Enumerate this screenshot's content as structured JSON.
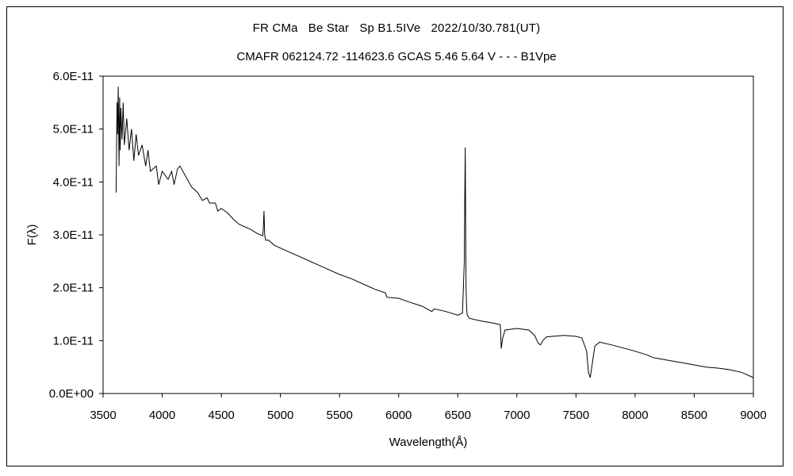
{
  "chart_data": {
    "type": "line",
    "title": "FR CMa   Be Star   Sp B1.5IVe   2022/10/30.781(UT)",
    "subtitle": "CMAFR 062124.72 -114623.6 GCAS 5.46 5.64 V - - - B1Vpe",
    "xlabel": "Wavelength(Å)",
    "ylabel": "F(λ)",
    "xlim": [
      3500,
      9000
    ],
    "ylim": [
      0,
      6e-11
    ],
    "x_ticks": [
      "3500",
      "4000",
      "4500",
      "5000",
      "5500",
      "6000",
      "6500",
      "7000",
      "7500",
      "8000",
      "8500",
      "9000"
    ],
    "y_ticks": [
      "0.0E+00",
      "1.0E-11",
      "2.0E-11",
      "3.0E-11",
      "4.0E-11",
      "5.0E-11",
      "6.0E-11"
    ],
    "grid": false,
    "legend": "none",
    "series": [
      {
        "x": [
          3610,
          3618,
          3622,
          3628,
          3635,
          3640,
          3645,
          3650,
          3660,
          3670,
          3680,
          3700,
          3720,
          3740,
          3760,
          3780,
          3800,
          3830,
          3860,
          3880,
          3900,
          3950,
          3970,
          4000,
          4050,
          4080,
          4100,
          4130,
          4150,
          4200,
          4250,
          4300,
          4340,
          4380,
          4400,
          4450,
          4470,
          4500,
          4550,
          4600,
          4650,
          4700,
          4750,
          4800,
          4850,
          4855,
          4861,
          4867,
          4875,
          4900,
          4950,
          5000,
          5100,
          5200,
          5300,
          5400,
          5500,
          5600,
          5700,
          5800,
          5890,
          5900,
          6000,
          6100,
          6200,
          6280,
          6300,
          6400,
          6500,
          6540,
          6555,
          6560,
          6563,
          6566,
          6570,
          6575,
          6580,
          6600,
          6700,
          6800,
          6860,
          6868,
          6880,
          6900,
          7000,
          7100,
          7150,
          7180,
          7200,
          7220,
          7250,
          7300,
          7400,
          7500,
          7550,
          7590,
          7605,
          7620,
          7640,
          7660,
          7700,
          7800,
          7900,
          8000,
          8100,
          8150,
          8200,
          8300,
          8400,
          8500,
          8600,
          8700,
          8800,
          8900,
          9000
        ],
        "y": [
          3.8e-11,
          5.5e-11,
          4.9e-11,
          5.8e-11,
          4.3e-11,
          5.6e-11,
          4.6e-11,
          5.4e-11,
          4.8e-11,
          5.5e-11,
          4.7e-11,
          5.2e-11,
          4.6e-11,
          5e-11,
          4.4e-11,
          4.9e-11,
          4.5e-11,
          4.7e-11,
          4.3e-11,
          4.6e-11,
          4.2e-11,
          4.3e-11,
          3.95e-11,
          4.2e-11,
          4.05e-11,
          4.2e-11,
          3.95e-11,
          4.25e-11,
          4.3e-11,
          4.1e-11,
          3.9e-11,
          3.8e-11,
          3.65e-11,
          3.7e-11,
          3.6e-11,
          3.6e-11,
          3.45e-11,
          3.5e-11,
          3.42e-11,
          3.3e-11,
          3.2e-11,
          3.15e-11,
          3.1e-11,
          3.03e-11,
          2.98e-11,
          3.1e-11,
          3.45e-11,
          3e-11,
          2.9e-11,
          2.9e-11,
          2.8e-11,
          2.75e-11,
          2.65e-11,
          2.55e-11,
          2.45e-11,
          2.35e-11,
          2.25e-11,
          2.17e-11,
          2.07e-11,
          1.97e-11,
          1.9e-11,
          1.82e-11,
          1.8e-11,
          1.72e-11,
          1.65e-11,
          1.55e-11,
          1.6e-11,
          1.55e-11,
          1.48e-11,
          1.52e-11,
          2.5e-11,
          3.9e-11,
          4.65e-11,
          3.5e-11,
          2e-11,
          1.6e-11,
          1.48e-11,
          1.42e-11,
          1.37e-11,
          1.33e-11,
          1.3e-11,
          8.5e-12,
          1.05e-11,
          1.2e-11,
          1.23e-11,
          1.2e-11,
          1.1e-11,
          9.5e-12,
          9.2e-12,
          1e-11,
          1.07e-11,
          1.08e-11,
          1.1e-11,
          1.08e-11,
          1.05e-11,
          8e-12,
          4e-12,
          3e-12,
          6e-12,
          9e-12,
          9.7e-12,
          9.2e-12,
          8.6e-12,
          8e-12,
          7.3e-12,
          6.8e-12,
          6.6e-12,
          6.2e-12,
          5.8e-12,
          5.4e-12,
          5e-12,
          4.8e-12,
          4.5e-12,
          4e-12,
          3e-12
        ]
      }
    ]
  }
}
